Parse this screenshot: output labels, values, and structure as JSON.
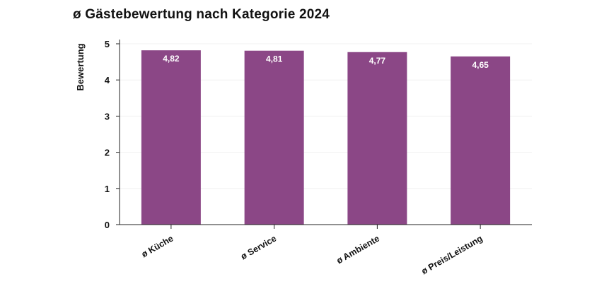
{
  "chart_data": {
    "type": "bar",
    "title": "ø Gästebewertung nach Kategorie 2024",
    "xlabel": "",
    "ylabel": "Bewertung",
    "categories": [
      "ø Küche",
      "ø Service",
      "ø Ambiente",
      "ø Preis/Leistung"
    ],
    "values": [
      4.82,
      4.81,
      4.77,
      4.65
    ],
    "value_labels": [
      "4,82",
      "4,81",
      "4,77",
      "4,65"
    ],
    "ylim": [
      0,
      5
    ],
    "yticks": [
      0,
      1,
      2,
      3,
      4,
      5
    ],
    "ytick_labels": [
      "0",
      "1",
      "2",
      "3",
      "4",
      "5"
    ],
    "grid": true,
    "legend": "none",
    "bar_color": "#8b4786",
    "grid_color": "#f0f0f0",
    "axis_color": "#222222",
    "label_color": "#ffffff"
  }
}
